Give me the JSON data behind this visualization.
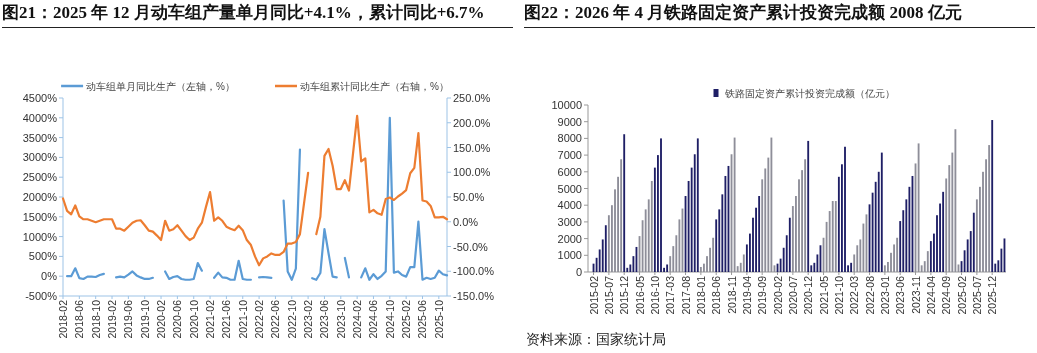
{
  "chart_data": [
    {
      "type": "line",
      "title": "图21：2025 年 12 月动车组产量单月同比+4.1%，累计同比+6.7%",
      "legend": "top",
      "categories": [
        "2018-02",
        null,
        null,
        null,
        "2018-06",
        null,
        null,
        null,
        "2018-10",
        null,
        null,
        null,
        "2019-02",
        null,
        null,
        null,
        "2019-06",
        null,
        null,
        null,
        "2019-10",
        null,
        null,
        null,
        "2020-02",
        null,
        null,
        null,
        "2020-06",
        null,
        null,
        null,
        "2020-10",
        null,
        null,
        null,
        "2021-02",
        null,
        null,
        null,
        "2021-06",
        null,
        null,
        null,
        "2021-10",
        null,
        null,
        null,
        "2022-02",
        null,
        null,
        null,
        "2022-06",
        null,
        null,
        null,
        "2022-10",
        null,
        null,
        null,
        "2023-02",
        null,
        null,
        null,
        "2023-06",
        null,
        null,
        null,
        "2023-10",
        null,
        null,
        null,
        "2024-02",
        null,
        null,
        null,
        "2024-06",
        null,
        null,
        null,
        "2024-10",
        null,
        null,
        null,
        "2025-02",
        null,
        null,
        null,
        "2025-06",
        null,
        null,
        null,
        "2025-10",
        null,
        null
      ],
      "ylim": [
        -500,
        4500
      ],
      "yticks": [
        {
          "value": -500,
          "label": "-500%"
        },
        {
          "value": 0,
          "label": "0%"
        },
        {
          "value": 500,
          "label": "500%"
        },
        {
          "value": 1000,
          "label": "1000%"
        },
        {
          "value": 1500,
          "label": "1500%"
        },
        {
          "value": 2000,
          "label": "2000%"
        },
        {
          "value": 2500,
          "label": "2500%"
        },
        {
          "value": 3000,
          "label": "3000%"
        },
        {
          "value": 3500,
          "label": "3500%"
        },
        {
          "value": 4000,
          "label": "4000%"
        },
        {
          "value": 4500,
          "label": "4500%"
        }
      ],
      "y2lim": [
        -150,
        250
      ],
      "y2ticks": [
        {
          "value": -150,
          "label": "-150.0%"
        },
        {
          "value": -100,
          "label": "-100.0%"
        },
        {
          "value": -50,
          "label": "-50.0%"
        },
        {
          "value": 0,
          "label": "0.0%"
        },
        {
          "value": 50,
          "label": "50.0%"
        },
        {
          "value": 100,
          "label": "100.0%"
        },
        {
          "value": 150,
          "label": "150.0%"
        },
        {
          "value": 200,
          "label": "200.0%"
        },
        {
          "value": 250,
          "label": "250.0%"
        }
      ],
      "series": [
        {
          "name": "动车组单月同比生产（左轴，%）",
          "color": "#5b9bd5",
          "values": [
            null,
            0,
            0,
            200,
            -50,
            -70,
            -10,
            -10,
            -20,
            30,
            60,
            null,
            null,
            -30,
            -10,
            -30,
            40,
            120,
            20,
            -30,
            -70,
            -70,
            -40,
            null,
            null,
            120,
            -70,
            -20,
            0,
            -70,
            -90,
            -90,
            -70,
            330,
            140,
            null,
            null,
            -40,
            90,
            -30,
            -40,
            -90,
            -90,
            390,
            -70,
            -90,
            -90,
            null,
            -30,
            -20,
            -30,
            -40,
            null,
            null,
            1910,
            120,
            -90,
            190,
            3200,
            null,
            null,
            -50,
            -90,
            80,
            1190,
            580,
            -10,
            -30,
            null,
            460,
            -30,
            null,
            null,
            -30,
            200,
            -90,
            50,
            -70,
            10,
            120,
            4000,
            90,
            120,
            30,
            -10,
            230,
            230,
            1380,
            -90,
            -40,
            -70,
            -40,
            140,
            50,
            20
          ]
        },
        {
          "name": "动车组累计同比生产（右轴，%）",
          "color": "#ed7d31",
          "axis": "y2",
          "values": [
            47,
            22,
            15,
            33,
            11,
            5,
            5,
            2,
            -1,
            2,
            5,
            5,
            5,
            -14,
            -14,
            -18,
            -10,
            -2,
            2,
            3,
            -7,
            -18,
            -20,
            -28,
            -37,
            2,
            -18,
            -15,
            -7,
            -18,
            -29,
            -37,
            -32,
            -14,
            -2,
            30,
            60,
            2,
            9,
            2,
            -10,
            -14,
            -17,
            -8,
            -17,
            -37,
            -47,
            -70,
            -88,
            -74,
            -70,
            -64,
            -67,
            -67,
            -61,
            -44,
            -44,
            -41,
            -25,
            37,
            99,
            null,
            -25,
            10,
            133,
            147,
            113,
            66,
            66,
            84,
            63,
            138,
            214,
            122,
            128,
            19,
            24,
            17,
            14,
            46,
            49,
            44,
            51,
            57,
            64,
            98,
            109,
            179,
            43,
            41,
            32,
            9,
            9,
            10,
            5
          ]
        }
      ]
    },
    {
      "type": "bar",
      "title": "图22：2026 年 4 月铁路固定资产累计投资完成额 2008 亿元",
      "legend": "top",
      "categories": [
        "2015-02",
        null,
        null,
        null,
        null,
        "2015-07",
        null,
        null,
        null,
        null,
        "2015-12",
        null,
        null,
        null,
        null,
        "2016-05",
        null,
        null,
        null,
        null,
        "2016-10",
        null,
        null,
        null,
        null,
        "2017-03",
        null,
        null,
        null,
        null,
        "2017-08",
        null,
        null,
        null,
        null,
        "2018-01",
        null,
        null,
        null,
        null,
        "2018-06",
        null,
        null,
        null,
        null,
        "2018-11",
        null,
        null,
        null,
        null,
        "2019-04",
        null,
        null,
        null,
        null,
        "2019-09",
        null,
        null,
        null,
        null,
        "2020-02",
        null,
        null,
        null,
        null,
        "2020-07",
        null,
        null,
        null,
        null,
        "2020-12",
        null,
        null,
        null,
        null,
        "2021-05",
        null,
        null,
        null,
        null,
        "2021-10",
        null,
        null,
        null,
        null,
        "2022-03",
        null,
        null,
        null,
        null,
        "2022-08",
        null,
        null,
        null,
        null,
        "2023-01",
        null,
        null,
        null,
        null,
        "2023-06",
        null,
        null,
        null,
        null,
        "2023-11",
        null,
        null,
        null,
        null,
        "2024-04",
        null,
        null,
        null,
        null,
        "2024-09",
        null,
        null,
        null,
        null,
        "2025-02",
        null,
        null,
        null,
        null,
        "2025-07",
        null,
        null,
        null,
        null,
        "2025-12",
        null,
        null,
        null,
        null
      ],
      "ylim": [
        0,
        10000
      ],
      "yticks": [
        0,
        1000,
        2000,
        3000,
        4000,
        5000,
        6000,
        7000,
        8000,
        9000,
        10000
      ],
      "series": [
        {
          "name": "铁路固定资产累计投资完成额（亿元）",
          "color": "#1f1f66",
          "colors": [
            "#1f1f66",
            "#1f1f66",
            "#1f1f66",
            "#1f1f66",
            "#1f1f66",
            "#8e8e99",
            "#8e8e99",
            "#8e8e99",
            "#8e8e99",
            "#8e8e99",
            "#1f1f66",
            "#1f1f66",
            "#1f1f66",
            "#1f1f66",
            "#1f1f66",
            "#8e8e99",
            "#8e8e99",
            "#8e8e99",
            "#8e8e99",
            "#8e8e99",
            "#1f1f66",
            "#1f1f66",
            "#1f1f66",
            "#1f1f66",
            "#1f1f66",
            "#8e8e99",
            "#8e8e99",
            "#8e8e99",
            "#8e8e99",
            "#8e8e99",
            "#1f1f66",
            "#1f1f66",
            "#1f1f66",
            "#1f1f66",
            "#1f1f66",
            "#8e8e99",
            "#8e8e99",
            "#8e8e99",
            "#8e8e99",
            "#8e8e99",
            "#1f1f66",
            "#1f1f66",
            "#1f1f66",
            "#1f1f66",
            "#1f1f66",
            "#8e8e99",
            "#8e8e99",
            "#8e8e99",
            "#8e8e99",
            "#8e8e99",
            "#1f1f66",
            "#1f1f66",
            "#1f1f66",
            "#1f1f66",
            "#1f1f66",
            "#8e8e99",
            "#8e8e99",
            "#8e8e99",
            "#8e8e99",
            "#8e8e99",
            "#1f1f66",
            "#1f1f66",
            "#1f1f66",
            "#1f1f66",
            "#1f1f66",
            "#8e8e99",
            "#8e8e99",
            "#8e8e99",
            "#8e8e99",
            "#8e8e99",
            "#1f1f66",
            "#1f1f66",
            "#1f1f66",
            "#1f1f66",
            "#1f1f66",
            "#8e8e99",
            "#8e8e99",
            "#8e8e99",
            "#8e8e99",
            "#8e8e99",
            "#1f1f66",
            "#1f1f66",
            "#1f1f66",
            "#1f1f66",
            "#1f1f66",
            "#8e8e99",
            "#8e8e99",
            "#8e8e99",
            "#8e8e99",
            "#8e8e99",
            "#1f1f66",
            "#1f1f66",
            "#1f1f66",
            "#1f1f66",
            "#1f1f66",
            "#8e8e99",
            "#8e8e99",
            "#8e8e99",
            "#8e8e99",
            "#8e8e99",
            "#1f1f66",
            "#1f1f66",
            "#1f1f66",
            "#1f1f66",
            "#1f1f66",
            "#8e8e99",
            "#8e8e99",
            "#8e8e99",
            "#8e8e99",
            "#8e8e99",
            "#1f1f66",
            "#1f1f66",
            "#1f1f66",
            "#1f1f66",
            "#1f1f66",
            "#8e8e99",
            "#8e8e99",
            "#8e8e99",
            "#8e8e99",
            "#8e8e99",
            "#1f1f66",
            "#1f1f66",
            "#1f1f66",
            "#1f1f66",
            "#1f1f66",
            "#8e8e99",
            "#8e8e99",
            "#8e8e99",
            "#8e8e99",
            "#8e8e99",
            "#1f1f66",
            "#1f1f66",
            "#1f1f66",
            "#1f1f66",
            "#1f1f66"
          ],
          "values": [
            500,
            850,
            1350,
            1950,
            2800,
            3400,
            4000,
            4950,
            5700,
            6750,
            8250,
            250,
            450,
            950,
            1500,
            2150,
            3100,
            3750,
            4350,
            5450,
            6250,
            7000,
            8000,
            250,
            450,
            950,
            1550,
            2200,
            3150,
            3800,
            4550,
            5450,
            6250,
            7050,
            8000,
            300,
            500,
            950,
            1450,
            2050,
            3150,
            3750,
            4650,
            5750,
            6350,
            7050,
            8050,
            350,
            550,
            1050,
            1650,
            2300,
            3250,
            3850,
            4550,
            5550,
            6200,
            6850,
            8050,
            400,
            500,
            800,
            1450,
            2200,
            3250,
            3950,
            4550,
            5550,
            6100,
            6750,
            7850,
            400,
            550,
            1050,
            1600,
            2050,
            3000,
            3650,
            4250,
            4250,
            5700,
            6450,
            7500,
            400,
            550,
            1050,
            1600,
            1950,
            2900,
            3450,
            4050,
            4750,
            5400,
            6000,
            7150,
            400,
            600,
            1150,
            1650,
            2050,
            3050,
            3700,
            4350,
            5100,
            5750,
            6500,
            7700,
            400,
            650,
            1250,
            1850,
            2300,
            3400,
            4100,
            4800,
            5600,
            6400,
            7150,
            8550,
            450,
            650,
            1300,
            1950,
            2450,
            3550,
            4350,
            5100,
            6000,
            6750,
            7600,
            9100,
            500,
            700,
            1400,
            2008
          ]
        }
      ],
      "annotations": [
        "资料来源：国家统计局"
      ]
    }
  ]
}
